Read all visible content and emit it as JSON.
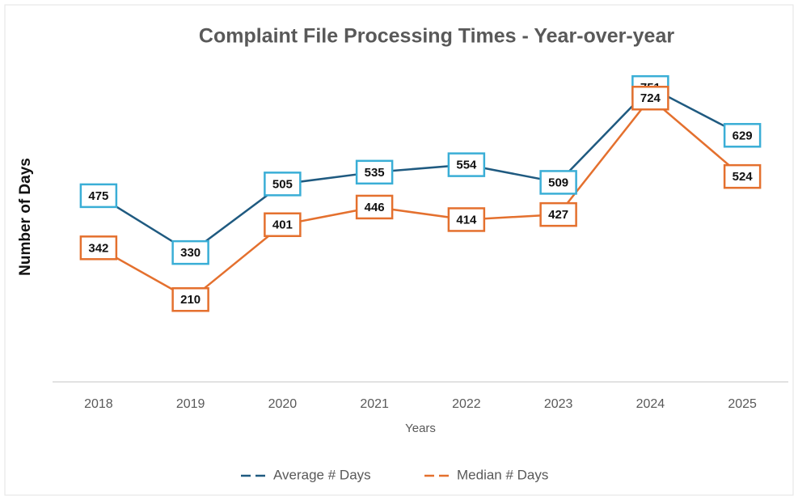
{
  "chart_data": {
    "type": "line",
    "title": "Complaint File Processing Times - Year-over-year",
    "x_label": "Years",
    "y_label": "Number of Days",
    "categories": [
      "2018",
      "2019",
      "2020",
      "2021",
      "2022",
      "2023",
      "2024",
      "2025"
    ],
    "series": [
      {
        "name": "Average # Days",
        "color": "#1f5a80",
        "label_color": "#3aaed6",
        "values": [
          475,
          330,
          505,
          535,
          554,
          509,
          751,
          629
        ]
      },
      {
        "name": "Median # Days",
        "color": "#e4702e",
        "label_color": "#e4702e",
        "values": [
          342,
          210,
          401,
          446,
          414,
          427,
          724,
          524
        ]
      }
    ],
    "ylim": [
      0,
      900
    ],
    "legend": "bottom"
  }
}
